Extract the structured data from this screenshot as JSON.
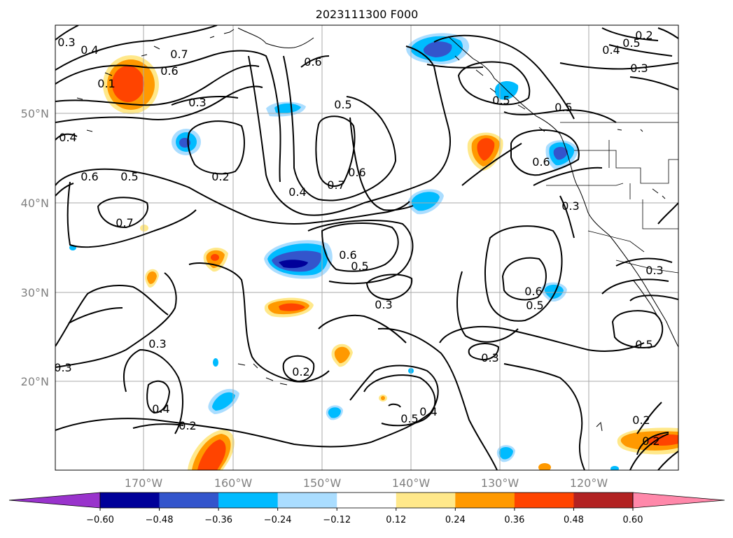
{
  "title": "2023111300 F000",
  "lat_labels": [
    "50°N",
    "40°N",
    "30°N",
    "20°N"
  ],
  "lon_labels": [
    "170°W",
    "160°W",
    "150°W",
    "140°W",
    "130°W",
    "120°W"
  ],
  "contour_labels": [
    "0.3",
    "0.4",
    "0.7",
    "0.6",
    "0.1",
    "0.3",
    "0.6",
    "0.5",
    "0.5",
    "0.4",
    "0.2",
    "0.6",
    "0.5",
    "0.7",
    "0.7",
    "0.6",
    "0.4",
    "0.6",
    "0.5",
    "0.3",
    "0.5",
    "0.3",
    "0.3",
    "0.6",
    "0.5",
    "0.3",
    "0.2",
    "0.3",
    "0.5",
    "0.4",
    "0.4",
    "0.2",
    "0.2",
    "0.3",
    "0.5",
    "0.6",
    "0.4",
    "0.5",
    "0.3",
    "0.2",
    "0.2"
  ],
  "colorbar": {
    "colors": [
      "#9933cc",
      "#000099",
      "#3355cc",
      "#00bbff",
      "#aaddff",
      "#ffffff",
      "#ffe88a",
      "#ff9900",
      "#ff4400",
      "#b22222",
      "#ff88aa"
    ],
    "ticks": [
      "−0.60",
      "−0.48",
      "−0.36",
      "−0.24",
      "−0.12",
      "0.12",
      "0.24",
      "0.36",
      "0.48",
      "0.60"
    ]
  },
  "colors": {
    "contour": "#000000",
    "grid": "#aaaaaa",
    "axis_label": "#808080"
  }
}
